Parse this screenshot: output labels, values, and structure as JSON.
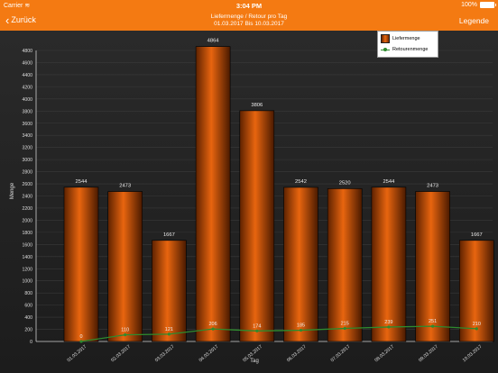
{
  "status_bar": {
    "carrier": "Carrier",
    "time": "3:04 PM",
    "battery": "100%"
  },
  "nav": {
    "back_label": "Zurück",
    "title_line1": "Liefermenge / Retour pro Tag",
    "title_line2": "01.03.2017 Bis 10.03.2017",
    "legend_button": "Legende"
  },
  "colors": {
    "accent": "#f47a12",
    "bar": "#e8650f",
    "line": "#2e8b2e"
  },
  "chart_data": {
    "type": "bar",
    "categories": [
      "01.03.2017",
      "02.03.2017",
      "03.03.2017",
      "04.03.2017",
      "05.03.2017",
      "06.03.2017",
      "07.03.2017",
      "08.03.2017",
      "09.03.2017",
      "10.03.2017"
    ],
    "series": [
      {
        "name": "Liefermenge",
        "type": "bar",
        "values": [
          2544,
          2473,
          1667,
          4864,
          3806,
          2542,
          2520,
          2544,
          2473,
          1667
        ]
      },
      {
        "name": "Retourenmenge",
        "type": "line",
        "values": [
          0,
          110,
          121,
          206,
          174,
          185,
          215,
          239,
          251,
          210
        ]
      }
    ],
    "xlabel": "Tag",
    "ylabel": "Menge",
    "ylim": [
      0,
      4800
    ],
    "yticks": [
      0,
      200,
      400,
      600,
      800,
      1000,
      1200,
      1400,
      1600,
      1800,
      2000,
      2200,
      2400,
      2600,
      2800,
      3000,
      3200,
      3400,
      3600,
      3800,
      4000,
      4200,
      4400,
      4600,
      4800
    ],
    "grid": true,
    "legend_position": "top-right"
  }
}
